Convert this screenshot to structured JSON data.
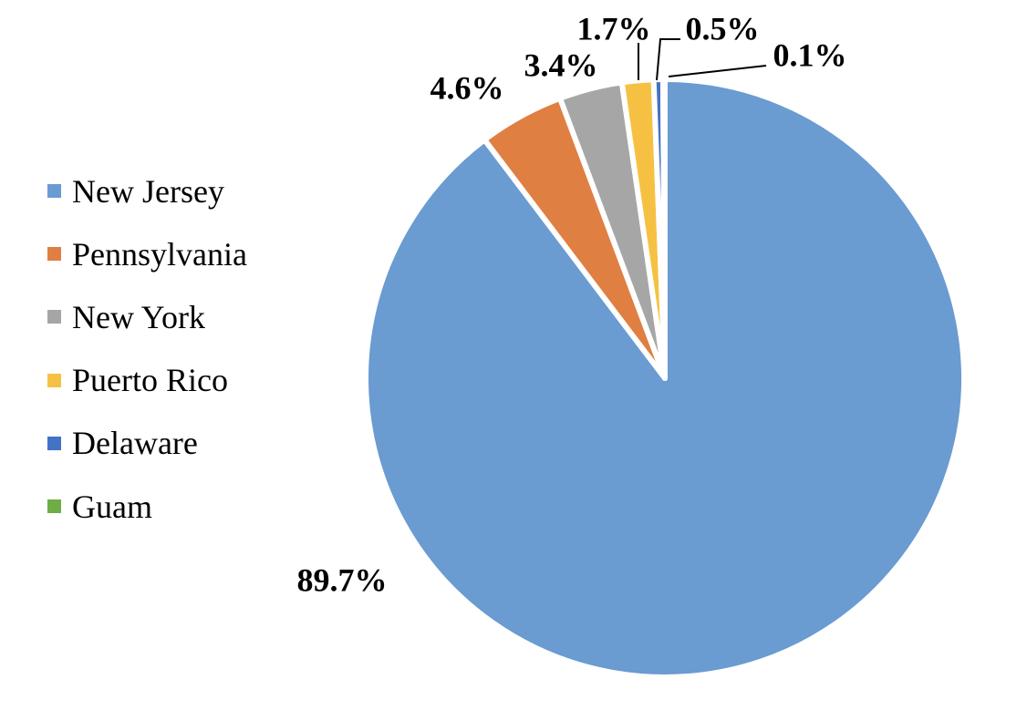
{
  "chart_data": {
    "type": "pie",
    "categories": [
      "New Jersey",
      "Pennsylvania",
      "New York",
      "Puerto Rico",
      "Delaware",
      "Guam"
    ],
    "values": [
      89.7,
      4.6,
      3.4,
      1.7,
      0.5,
      0.1
    ],
    "labels": [
      "89.7%",
      "4.6%",
      "3.4%",
      "1.7%",
      "0.5%",
      "0.1%"
    ],
    "colors": [
      "#6a9bd1",
      "#e07f42",
      "#a6a6a6",
      "#f6c143",
      "#4472c4",
      "#70ad47"
    ],
    "legend_position": "left",
    "start_angle": "12 o'clock",
    "direction": "clockwise"
  }
}
